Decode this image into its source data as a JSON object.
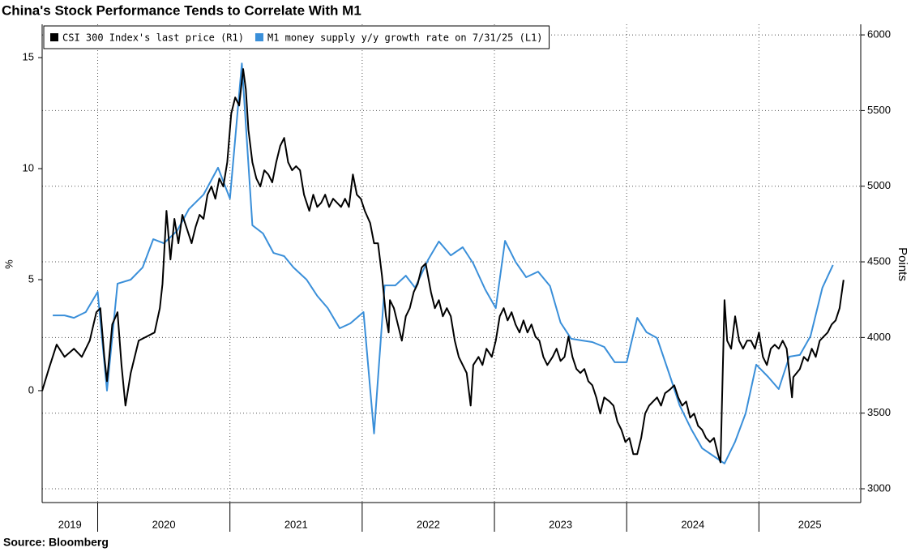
{
  "chart_data": {
    "type": "line",
    "title": "China's Stock Performance Tends to Correlate With M1",
    "source": "Source: Bloomberg",
    "ylabel": "%",
    "y2label": "Points",
    "xlim": [
      2019.58,
      2025.77
    ],
    "xticks": [
      2019,
      2020,
      2021,
      2022,
      2023,
      2024,
      2025
    ],
    "ylim": [
      -5.04,
      16.5
    ],
    "yticks": [
      0,
      5,
      10,
      15
    ],
    "y2lim": [
      2909,
      6070
    ],
    "y2ticks": [
      3000,
      3500,
      4000,
      4500,
      5000,
      5500,
      6000
    ],
    "grid": true,
    "legend": "upper left",
    "series": [
      {
        "name": "CSI 300 Index's last price (R1)",
        "color": "#000000",
        "axis": "y2",
        "x": [
          2019.58,
          2019.63,
          2019.69,
          2019.75,
          2019.82,
          2019.88,
          2019.94,
          2019.99,
          2020.02,
          2020.05,
          2020.07,
          2020.11,
          2020.15,
          2020.18,
          2020.21,
          2020.25,
          2020.31,
          2020.37,
          2020.43,
          2020.47,
          2020.49,
          2020.52,
          2020.55,
          2020.58,
          2020.61,
          2020.64,
          2020.67,
          2020.71,
          2020.74,
          2020.77,
          2020.8,
          2020.83,
          2020.86,
          2020.89,
          2020.92,
          2020.95,
          2020.98,
          2021.01,
          2021.04,
          2021.07,
          2021.1,
          2021.12,
          2021.14,
          2021.17,
          2021.2,
          2021.23,
          2021.26,
          2021.29,
          2021.32,
          2021.35,
          2021.38,
          2021.41,
          2021.44,
          2021.47,
          2021.5,
          2021.53,
          2021.56,
          2021.6,
          2021.63,
          2021.66,
          2021.69,
          2021.72,
          2021.75,
          2021.78,
          2021.81,
          2021.84,
          2021.87,
          2021.9,
          2021.93,
          2021.96,
          2021.99,
          2022.02,
          2022.06,
          2022.09,
          2022.12,
          2022.15,
          2022.18,
          2022.2,
          2022.21,
          2022.24,
          2022.27,
          2022.3,
          2022.33,
          2022.36,
          2022.39,
          2022.42,
          2022.45,
          2022.48,
          2022.52,
          2022.55,
          2022.58,
          2022.61,
          2022.64,
          2022.67,
          2022.7,
          2022.73,
          2022.76,
          2022.79,
          2022.82,
          2022.84,
          2022.88,
          2022.91,
          2022.94,
          2022.98,
          2023.01,
          2023.04,
          2023.07,
          2023.1,
          2023.13,
          2023.16,
          2023.19,
          2023.22,
          2023.25,
          2023.28,
          2023.31,
          2023.34,
          2023.37,
          2023.4,
          2023.44,
          2023.47,
          2023.5,
          2023.53,
          2023.56,
          2023.59,
          2023.62,
          2023.65,
          2023.68,
          2023.71,
          2023.74,
          2023.77,
          2023.8,
          2023.83,
          2023.87,
          2023.9,
          2023.93,
          2023.96,
          2023.99,
          2024.02,
          2024.05,
          2024.08,
          2024.11,
          2024.14,
          2024.17,
          2024.2,
          2024.23,
          2024.26,
          2024.29,
          2024.33,
          2024.36,
          2024.39,
          2024.42,
          2024.45,
          2024.48,
          2024.51,
          2024.54,
          2024.57,
          2024.6,
          2024.63,
          2024.66,
          2024.69,
          2024.71,
          2024.72,
          2024.74,
          2024.76,
          2024.79,
          2024.82,
          2024.85,
          2024.88,
          2024.91,
          2024.94,
          2024.97,
          2025.0,
          2025.03,
          2025.06,
          2025.09,
          2025.12,
          2025.15,
          2025.18,
          2025.21,
          2025.25,
          2025.26,
          2025.31,
          2025.34,
          2025.37,
          2025.4,
          2025.43,
          2025.46,
          2025.49,
          2025.52,
          2025.55,
          2025.58,
          2025.61,
          2025.64
        ],
        "values": [
          3647,
          3792,
          3953,
          3872,
          3926,
          3872,
          3979,
          4167,
          4194,
          3872,
          3711,
          4086,
          4167,
          3818,
          3550,
          3765,
          3979,
          4006,
          4033,
          4194,
          4355,
          4837,
          4516,
          4784,
          4623,
          4811,
          4730,
          4623,
          4730,
          4811,
          4784,
          4944,
          4998,
          4917,
          5051,
          4998,
          5158,
          5480,
          5587,
          5533,
          5775,
          5641,
          5373,
          5158,
          5051,
          4998,
          5105,
          5078,
          5025,
          5158,
          5266,
          5319,
          5158,
          5105,
          5132,
          5105,
          4944,
          4837,
          4944,
          4863,
          4890,
          4944,
          4863,
          4917,
          4890,
          4863,
          4917,
          4863,
          5078,
          4944,
          4917,
          4837,
          4757,
          4623,
          4623,
          4408,
          4140,
          4033,
          4247,
          4194,
          4086,
          3979,
          4140,
          4194,
          4301,
          4355,
          4462,
          4489,
          4301,
          4194,
          4247,
          4140,
          4194,
          4140,
          3979,
          3872,
          3818,
          3765,
          3550,
          3818,
          3872,
          3818,
          3926,
          3872,
          3979,
          4140,
          4194,
          4113,
          4167,
          4086,
          4033,
          4113,
          4033,
          4086,
          4006,
          3979,
          3872,
          3818,
          3872,
          3926,
          3845,
          3872,
          4006,
          3872,
          3792,
          3765,
          3792,
          3711,
          3684,
          3604,
          3497,
          3604,
          3577,
          3550,
          3443,
          3390,
          3309,
          3336,
          3229,
          3229,
          3336,
          3497,
          3550,
          3577,
          3604,
          3550,
          3631,
          3658,
          3684,
          3604,
          3550,
          3577,
          3470,
          3497,
          3416,
          3390,
          3336,
          3309,
          3336,
          3229,
          3175,
          3550,
          4247,
          3979,
          3926,
          4140,
          3979,
          3926,
          3979,
          3979,
          3926,
          4033,
          3872,
          3818,
          3926,
          3952,
          3926,
          3979,
          3926,
          3604,
          3738,
          3792,
          3872,
          3845,
          3926,
          3872,
          3979,
          4006,
          4033,
          4086,
          4113,
          4194,
          4381
        ]
      },
      {
        "name": "M1 money supply y/y growth rate on 7/31/25 (L1)",
        "color": "#3a8fd9",
        "axis": "y",
        "x": [
          2019.66,
          2019.75,
          2019.82,
          2019.91,
          2020.0,
          2020.07,
          2020.15,
          2020.25,
          2020.34,
          2020.42,
          2020.5,
          2020.6,
          2020.69,
          2020.8,
          2020.91,
          2021.0,
          2021.09,
          2021.17,
          2021.25,
          2021.33,
          2021.41,
          2021.48,
          2021.58,
          2021.66,
          2021.74,
          2021.83,
          2021.91,
          2022.01,
          2022.09,
          2022.17,
          2022.25,
          2022.33,
          2022.4,
          2022.5,
          2022.58,
          2022.67,
          2022.76,
          2022.84,
          2022.93,
          2023.01,
          2023.08,
          2023.16,
          2023.24,
          2023.33,
          2023.42,
          2023.5,
          2023.58,
          2023.66,
          2023.74,
          2023.83,
          2023.91,
          2024.0,
          2024.08,
          2024.15,
          2024.23,
          2024.33,
          2024.4,
          2024.49,
          2024.57,
          2024.66,
          2024.74,
          2024.82,
          2024.9,
          2024.98,
          2025.07,
          2025.15,
          2025.23,
          2025.31,
          2025.39,
          2025.48,
          2025.56
        ],
        "values": [
          3.39,
          3.39,
          3.28,
          3.54,
          4.45,
          0.0,
          4.82,
          5.0,
          5.55,
          6.82,
          6.64,
          7.19,
          8.18,
          8.83,
          10.04,
          8.65,
          14.74,
          7.45,
          7.08,
          6.2,
          6.06,
          5.55,
          5.0,
          4.27,
          3.72,
          2.81,
          3.03,
          3.54,
          -1.93,
          4.74,
          4.74,
          5.18,
          4.64,
          5.91,
          6.72,
          6.09,
          6.46,
          5.73,
          4.56,
          3.72,
          6.75,
          5.8,
          5.11,
          5.36,
          4.71,
          3.07,
          2.34,
          2.26,
          2.19,
          1.97,
          1.28,
          1.28,
          3.28,
          2.63,
          2.37,
          0.62,
          -0.66,
          -1.75,
          -2.59,
          -2.96,
          -3.28,
          -2.3,
          -1.02,
          1.17,
          0.62,
          0.07,
          1.53,
          1.61,
          2.45,
          4.64,
          5.66
        ]
      }
    ]
  }
}
